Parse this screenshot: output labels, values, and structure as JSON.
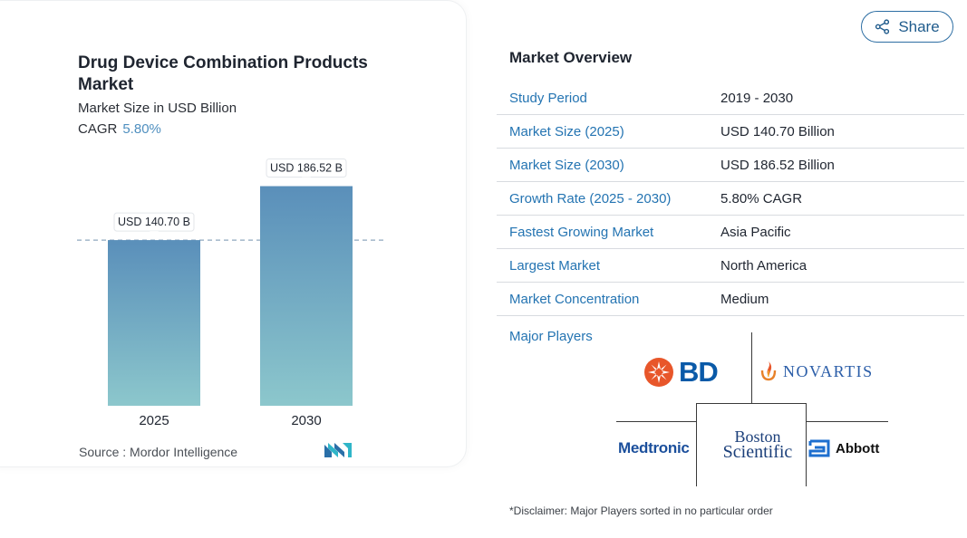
{
  "chart_data": {
    "type": "bar",
    "title": "Drug Device Combination Products Market",
    "subtitle": "Market Size in USD Billion",
    "cagr_label": "CAGR",
    "cagr_value": "5.80%",
    "categories": [
      "2025",
      "2030"
    ],
    "values": [
      140.7,
      186.52
    ],
    "data_labels": [
      "USD 140.70 B",
      "USD 186.52 B"
    ],
    "reference_line": 140.7,
    "ylim": [
      0,
      200
    ],
    "grid": false,
    "bar_gradient": [
      "#5a8fba",
      "#8cc7cc"
    ]
  },
  "source": "Source :  Mordor Intelligence",
  "share": {
    "label": "Share"
  },
  "overview": {
    "title": "Market Overview",
    "rows": [
      {
        "label": "Study Period",
        "value": "2019 - 2030"
      },
      {
        "label": "Market Size (2025)",
        "value": "USD 140.70 Billion"
      },
      {
        "label": "Market Size (2030)",
        "value": "USD 186.52 Billion"
      },
      {
        "label": "Growth Rate (2025 - 2030)",
        "value": "5.80% CAGR"
      },
      {
        "label": "Fastest Growing Market",
        "value": "Asia Pacific"
      },
      {
        "label": "Largest Market",
        "value": "North America"
      },
      {
        "label": "Market Concentration",
        "value": "Medium"
      }
    ]
  },
  "players": {
    "label": "Major Players",
    "logos": {
      "bd": "BD",
      "novartis": "NOVARTIS",
      "medtronic": "Medtronic",
      "boston_line1": "Boston",
      "boston_line2": "Scientific",
      "abbott": "Abbott"
    }
  },
  "disclaimer": "*Disclaimer: Major Players sorted in no particular order"
}
